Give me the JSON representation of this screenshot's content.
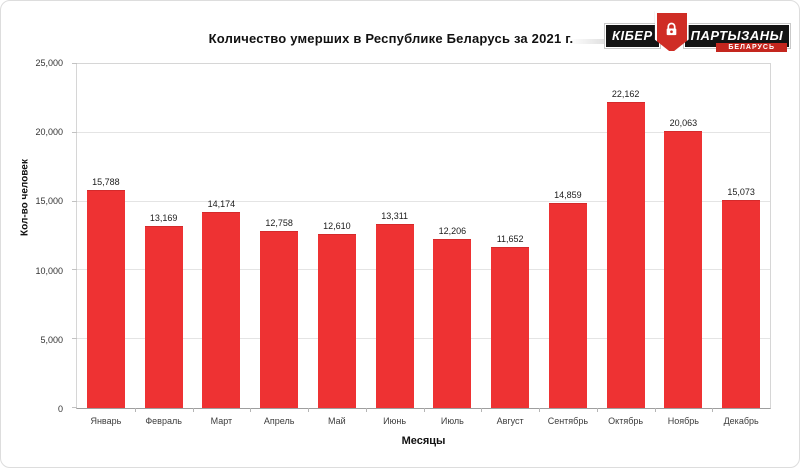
{
  "logo": {
    "word1": "КІБЕР",
    "word2": "ПАРТЫЗАНЫ",
    "subtitle": "БЕЛАРУСЬ",
    "shield_color": "#cf2d25"
  },
  "chart_data": {
    "type": "bar",
    "title": "Количество умерших в Республике Беларусь за 2021 г.",
    "xlabel": "Месяцы",
    "ylabel": "Кол-во человек",
    "categories": [
      "Январь",
      "Февраль",
      "Март",
      "Апрель",
      "Май",
      "Июнь",
      "Июль",
      "Август",
      "Сентябрь",
      "Октябрь",
      "Ноябрь",
      "Декабрь"
    ],
    "values": [
      15788,
      13169,
      14174,
      12758,
      12610,
      13311,
      12206,
      11652,
      14859,
      22162,
      20063,
      15073
    ],
    "value_labels": [
      "15,788",
      "13,169",
      "14,174",
      "12,758",
      "12,610",
      "13,311",
      "12,206",
      "11,652",
      "14,859",
      "22,162",
      "20,063",
      "15,073"
    ],
    "ylim": [
      0,
      25000
    ],
    "ytick_values": [
      0,
      5000,
      10000,
      15000,
      20000,
      25000
    ],
    "ytick_labels": [
      "0",
      "5,000",
      "10,000",
      "15,000",
      "20,000",
      "25,000"
    ],
    "grid": true,
    "legend": null,
    "bar_color": "#ee3233"
  }
}
